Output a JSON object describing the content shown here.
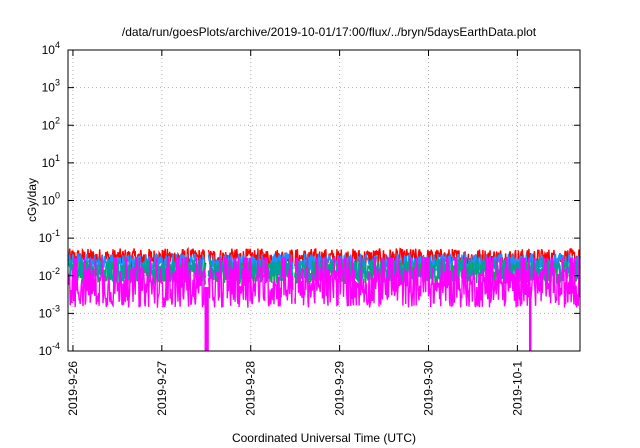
{
  "chart_data": {
    "type": "line",
    "title": "/data/run/goesPlots/archive/2019-10-01/17:00/flux/../bryn/5daysEarthData.plot",
    "xlabel": "Coordinated Universal Time (UTC)",
    "ylabel": "cGy/day",
    "yscale": "log",
    "ylim": [
      0.0001,
      10000
    ],
    "xlim": [
      "2019-09-25 22:40",
      "2019-10-01 17:00"
    ],
    "grid": true,
    "y_ticks": [
      {
        "base": "10",
        "exp": "-4"
      },
      {
        "base": "10",
        "exp": "-3"
      },
      {
        "base": "10",
        "exp": "-2"
      },
      {
        "base": "10",
        "exp": "-1"
      },
      {
        "base": "10",
        "exp": "0"
      },
      {
        "base": "10",
        "exp": "1"
      },
      {
        "base": "10",
        "exp": "2"
      },
      {
        "base": "10",
        "exp": "3"
      },
      {
        "base": "10",
        "exp": "4"
      }
    ],
    "x_ticks": [
      "2019-9-26",
      "2019-9-27",
      "2019-9-28",
      "2019-9-29",
      "2019-9-30",
      "2019-10-1"
    ],
    "series": [
      {
        "color": "#ff0000",
        "base": 0.03,
        "spread": 0.5,
        "segments": [
          [
            0.0,
            1.55
          ],
          [
            1.58,
            2.53
          ],
          [
            2.55,
            5.76
          ]
        ]
      },
      {
        "color": "#1e90ff",
        "base": 0.022,
        "spread": 0.5,
        "segments": [
          [
            0.0,
            1.55
          ],
          [
            1.58,
            2.53
          ],
          [
            2.55,
            5.76
          ]
        ]
      },
      {
        "color": "#00b050",
        "base": 0.012,
        "spread": 0.6,
        "segments": [
          [
            0.0,
            1.55
          ],
          [
            1.58,
            2.53
          ],
          [
            2.55,
            5.76
          ]
        ]
      },
      {
        "color": "#00a0a0",
        "base": 0.014,
        "spread": 0.6,
        "segments": [
          [
            0.0,
            1.55
          ],
          [
            1.58,
            2.53
          ],
          [
            2.55,
            5.76
          ]
        ]
      },
      {
        "color": "#ff00ff",
        "base": 0.005,
        "spread": 1.1,
        "segments": [
          [
            0.0,
            1.55
          ],
          [
            1.58,
            2.53
          ],
          [
            2.55,
            5.76
          ]
        ]
      }
    ],
    "dropouts_days": [
      1.55,
      1.57,
      5.2
    ]
  }
}
